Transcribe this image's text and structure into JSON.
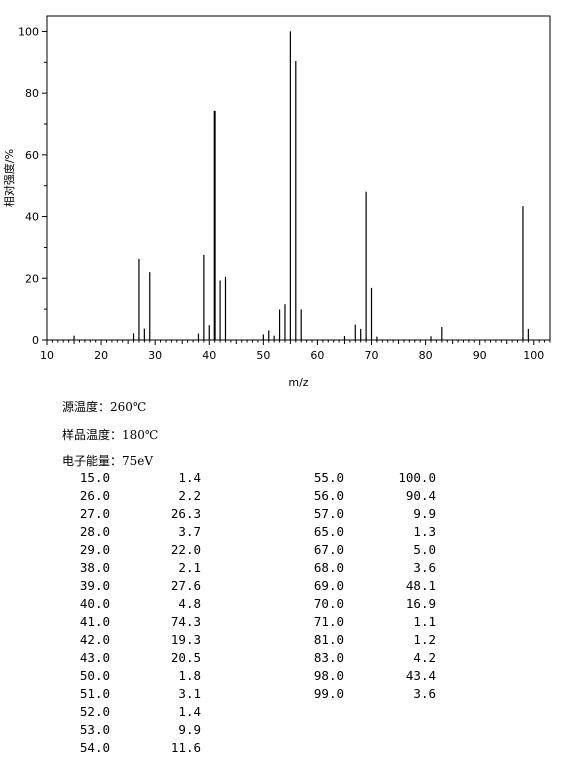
{
  "chart_data": {
    "type": "bar",
    "xlabel": "m/z",
    "ylabel": "相对强度/%",
    "xlim": [
      10,
      103
    ],
    "ylim": [
      0,
      105
    ],
    "x_ticks": [
      10,
      20,
      30,
      40,
      50,
      60,
      70,
      80,
      90,
      100
    ],
    "y_ticks": [
      0,
      20,
      40,
      60,
      80,
      100
    ],
    "peaks": [
      {
        "mz": 15.0,
        "intensity": 1.4
      },
      {
        "mz": 26.0,
        "intensity": 2.2
      },
      {
        "mz": 27.0,
        "intensity": 26.3
      },
      {
        "mz": 28.0,
        "intensity": 3.7
      },
      {
        "mz": 29.0,
        "intensity": 22.0
      },
      {
        "mz": 38.0,
        "intensity": 2.1
      },
      {
        "mz": 39.0,
        "intensity": 27.6
      },
      {
        "mz": 40.0,
        "intensity": 4.8
      },
      {
        "mz": 41.0,
        "intensity": 74.3
      },
      {
        "mz": 42.0,
        "intensity": 19.3
      },
      {
        "mz": 43.0,
        "intensity": 20.5
      },
      {
        "mz": 50.0,
        "intensity": 1.8
      },
      {
        "mz": 51.0,
        "intensity": 3.1
      },
      {
        "mz": 52.0,
        "intensity": 1.4
      },
      {
        "mz": 53.0,
        "intensity": 9.9
      },
      {
        "mz": 54.0,
        "intensity": 11.6
      },
      {
        "mz": 55.0,
        "intensity": 100.0
      },
      {
        "mz": 56.0,
        "intensity": 90.4
      },
      {
        "mz": 57.0,
        "intensity": 9.9
      },
      {
        "mz": 65.0,
        "intensity": 1.3
      },
      {
        "mz": 67.0,
        "intensity": 5.0
      },
      {
        "mz": 68.0,
        "intensity": 3.6
      },
      {
        "mz": 69.0,
        "intensity": 48.1
      },
      {
        "mz": 70.0,
        "intensity": 16.9
      },
      {
        "mz": 71.0,
        "intensity": 1.1
      },
      {
        "mz": 81.0,
        "intensity": 1.2
      },
      {
        "mz": 83.0,
        "intensity": 4.2
      },
      {
        "mz": 98.0,
        "intensity": 43.4
      },
      {
        "mz": 99.0,
        "intensity": 3.6
      }
    ]
  },
  "conditions": {
    "source_temp": "源温度：260℃",
    "sample_temp": "样品温度：180℃",
    "electron_energy": "电子能量：75eV"
  },
  "peak_table": {
    "left": [
      [
        "15.0",
        "1.4"
      ],
      [
        "26.0",
        "2.2"
      ],
      [
        "27.0",
        "26.3"
      ],
      [
        "28.0",
        "3.7"
      ],
      [
        "29.0",
        "22.0"
      ],
      [
        "38.0",
        "2.1"
      ],
      [
        "39.0",
        "27.6"
      ],
      [
        "40.0",
        "4.8"
      ],
      [
        "41.0",
        "74.3"
      ],
      [
        "42.0",
        "19.3"
      ],
      [
        "43.0",
        "20.5"
      ],
      [
        "50.0",
        "1.8"
      ],
      [
        "51.0",
        "3.1"
      ],
      [
        "52.0",
        "1.4"
      ],
      [
        "53.0",
        "9.9"
      ],
      [
        "54.0",
        "11.6"
      ]
    ],
    "right": [
      [
        "55.0",
        "100.0"
      ],
      [
        "56.0",
        "90.4"
      ],
      [
        "57.0",
        "9.9"
      ],
      [
        "65.0",
        "1.3"
      ],
      [
        "67.0",
        "5.0"
      ],
      [
        "68.0",
        "3.6"
      ],
      [
        "69.0",
        "48.1"
      ],
      [
        "70.0",
        "16.9"
      ],
      [
        "71.0",
        "1.1"
      ],
      [
        "81.0",
        "1.2"
      ],
      [
        "83.0",
        "4.2"
      ],
      [
        "98.0",
        "43.4"
      ],
      [
        "99.0",
        "3.6"
      ]
    ]
  }
}
